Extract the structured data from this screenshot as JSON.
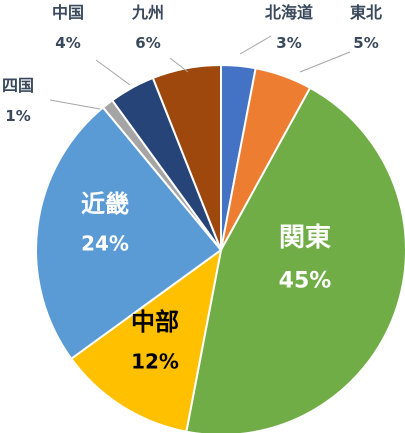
{
  "chart_data": {
    "type": "pie",
    "title": "",
    "slices": [
      {
        "label": "北海道",
        "pct_label": "3%",
        "value": 3,
        "color": "#4472c4"
      },
      {
        "label": "東北",
        "pct_label": "5%",
        "value": 5,
        "color": "#ed7d31"
      },
      {
        "label": "関東",
        "pct_label": "45%",
        "value": 45,
        "color": "#70ad47"
      },
      {
        "label": "中部",
        "pct_label": "12%",
        "value": 12,
        "color": "#ffc000"
      },
      {
        "label": "近畿",
        "pct_label": "24%",
        "value": 24,
        "color": "#5b9bd5"
      },
      {
        "label": "四国",
        "pct_label": "1%",
        "value": 1,
        "color": "#a5a5a5"
      },
      {
        "label": "中国",
        "pct_label": "4%",
        "value": 4,
        "color": "#264478"
      },
      {
        "label": "九州",
        "pct_label": "6%",
        "value": 6,
        "color": "#9e480e"
      }
    ]
  }
}
